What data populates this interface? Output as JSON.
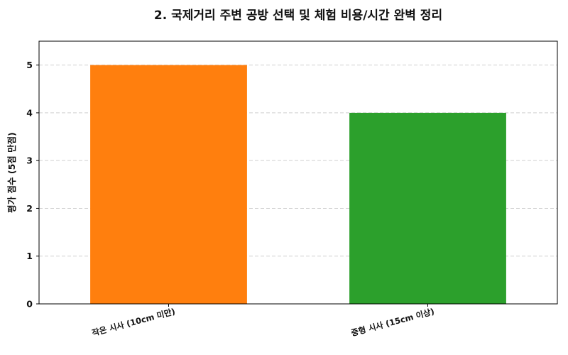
{
  "chart_data": {
    "type": "bar",
    "title": "2. 국제거리 주변 공방 선택 및 체험 비용/시간 완벽 정리",
    "xlabel": "",
    "ylabel": "평가 점수 (5점 만점)",
    "categories": [
      "작은 시사 (10cm 미만)",
      "중형 시사 (15cm 이상)"
    ],
    "values": [
      5,
      4
    ],
    "colors": [
      "#ff7f0e",
      "#2ca02c"
    ],
    "ylim": [
      0,
      5.5
    ],
    "yticks": [
      "0",
      "1",
      "2",
      "3",
      "4",
      "5"
    ],
    "grid": true,
    "grid_axis": "y",
    "legend": false
  }
}
